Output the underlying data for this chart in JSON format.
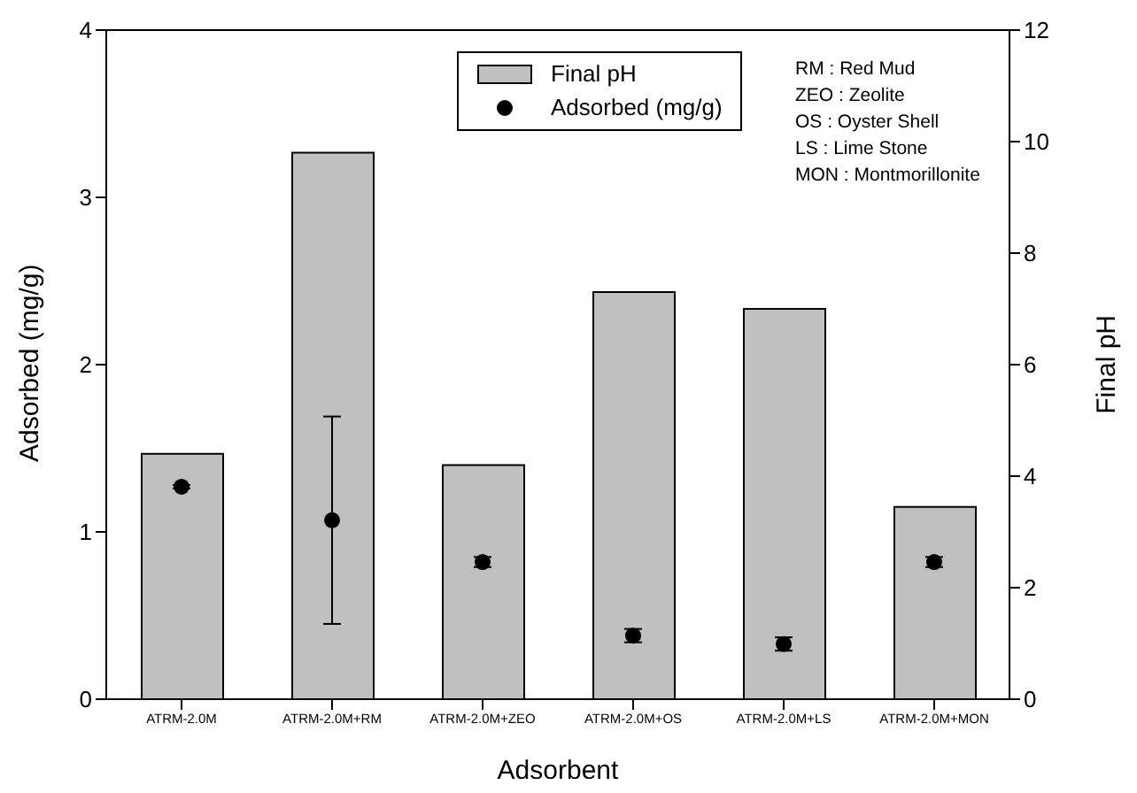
{
  "chart_data": {
    "type": "bar",
    "xlabel": "Adsorbent",
    "ylabel": "Adsorbed (mg/g)",
    "y2label": "Final pH",
    "categories": [
      "ATRM-2.0M",
      "ATRM-2.0M+RM",
      "ATRM-2.0M+ZEO",
      "ATRM-2.0M+OS",
      "ATRM-2.0M+LS",
      "ATRM-2.0M+MON"
    ],
    "series": [
      {
        "name": "Final pH",
        "axis": "y2",
        "color": "#c0c0c0",
        "values": [
          4.4,
          9.8,
          4.2,
          7.3,
          7.0,
          3.45
        ]
      },
      {
        "name": "Adsorbed (mg/g)",
        "type": "scatter",
        "axis": "y",
        "color": "#000000",
        "marker": "circle",
        "values": [
          1.27,
          1.07,
          0.82,
          0.38,
          0.33,
          0.82
        ],
        "errors": [
          0.01,
          0.62,
          0.03,
          0.04,
          0.04,
          0.03
        ]
      }
    ],
    "ylim": [
      0,
      4
    ],
    "yticks": [
      0,
      1,
      2,
      3,
      4
    ],
    "y2lim": [
      0,
      12
    ],
    "y2ticks": [
      0,
      2,
      4,
      6,
      8,
      10,
      12
    ],
    "grid": false,
    "legend": "top",
    "annotations": [
      "RM : Red Mud",
      "ZEO : Zeolite",
      "OS : Oyster Shell",
      "LS : Lime Stone",
      "MON : Montmorillonite"
    ]
  }
}
